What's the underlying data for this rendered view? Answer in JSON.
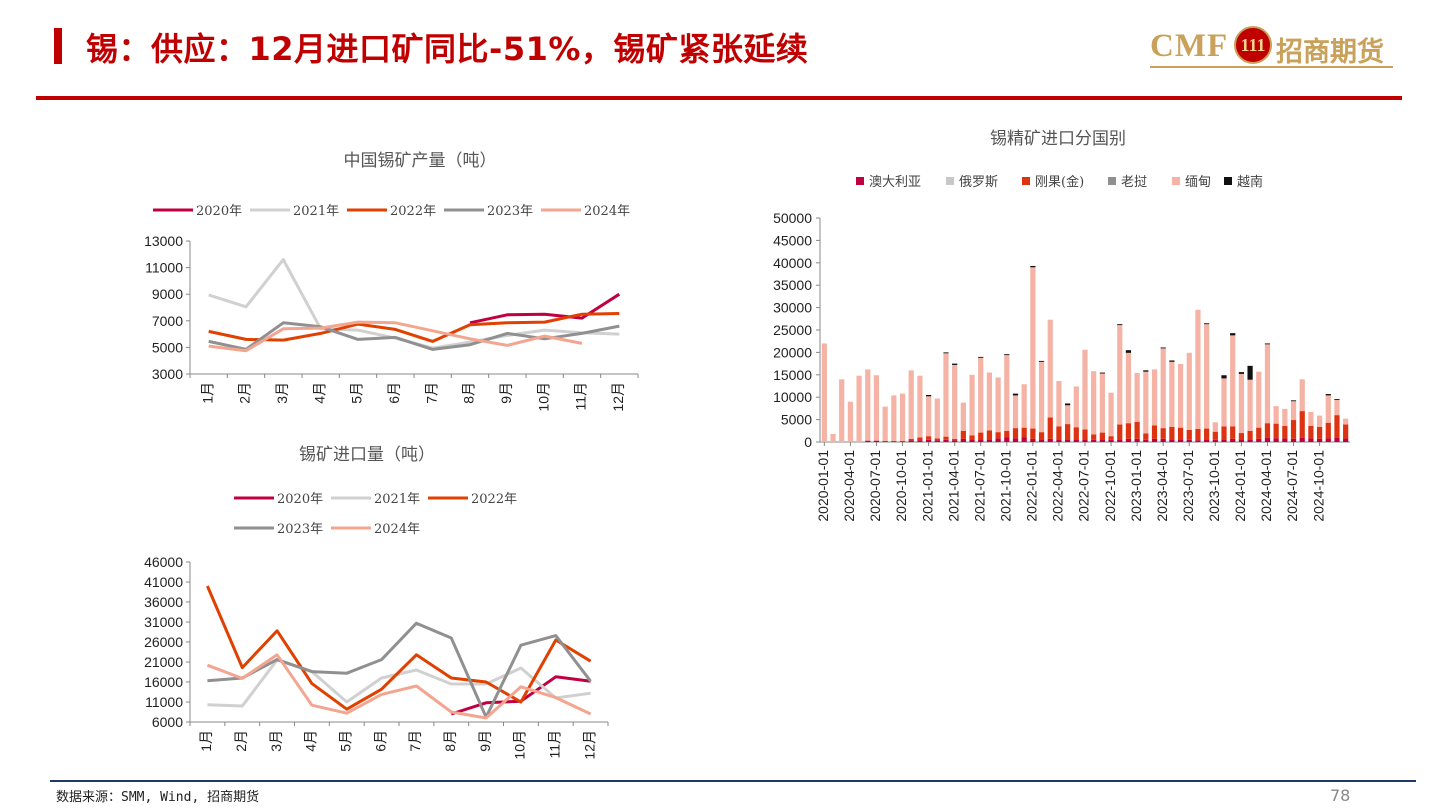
{
  "header": {
    "title": "锡：供应：12月进口矿同比-51%，锡矿紧张延续"
  },
  "logo": {
    "brand": "CMF",
    "badge": "111",
    "name": "招商期货"
  },
  "footer": {
    "source": "数据来源：SMM, Wind, 招商期货",
    "page": "78"
  },
  "colors": {
    "s2020": "#c00040",
    "s2021": "#d0d0d0",
    "s2022": "#e04000",
    "s2023": "#909090",
    "s2024": "#f4a590",
    "burma": "#f4b3a4",
    "congo": "#dd3311",
    "australia": "#c00040",
    "russia": "#c8c8c8",
    "laos": "#909090",
    "vietnam": "#111111"
  },
  "chart_data": [
    {
      "type": "line",
      "title": "中国锡矿产量（吨）",
      "categories": [
        "1月",
        "2月",
        "3月",
        "4月",
        "5月",
        "6月",
        "7月",
        "8月",
        "9月",
        "10月",
        "11月",
        "12月"
      ],
      "ylim": [
        3000,
        13000
      ],
      "yticks": [
        3000,
        5000,
        7000,
        9000,
        11000,
        13000
      ],
      "legend_position": "top",
      "series": [
        {
          "name": "2020年",
          "color": "#c00040",
          "values": [
            null,
            null,
            null,
            null,
            null,
            null,
            null,
            6850,
            7450,
            7500,
            7200,
            9000
          ]
        },
        {
          "name": "2021年",
          "color": "#d0d0d0",
          "values": [
            8950,
            8050,
            11600,
            6400,
            6300,
            5700,
            4950,
            5400,
            5900,
            6300,
            6100,
            6000
          ]
        },
        {
          "name": "2022年",
          "color": "#e04000",
          "values": [
            6200,
            5600,
            5550,
            6050,
            6750,
            6350,
            5450,
            6700,
            6850,
            6900,
            7500,
            7550
          ]
        },
        {
          "name": "2023年",
          "color": "#909090",
          "values": [
            5450,
            4850,
            6850,
            6550,
            5600,
            5750,
            4850,
            5200,
            6050,
            5650,
            6050,
            6600
          ]
        },
        {
          "name": "2024年",
          "color": "#f4a590",
          "values": [
            5100,
            4750,
            6400,
            6450,
            6900,
            6850,
            6250,
            5650,
            5150,
            5850,
            5300,
            null
          ]
        }
      ]
    },
    {
      "type": "line",
      "title": "锡矿进口量（吨）",
      "categories": [
        "1月",
        "2月",
        "3月",
        "4月",
        "5月",
        "6月",
        "7月",
        "8月",
        "9月",
        "10月",
        "11月",
        "12月"
      ],
      "ylim": [
        6000,
        46000
      ],
      "yticks": [
        6000,
        11000,
        16000,
        21000,
        26000,
        31000,
        36000,
        41000,
        46000
      ],
      "legend_position": "top",
      "series": [
        {
          "name": "2020年",
          "color": "#c00040",
          "values": [
            null,
            null,
            null,
            null,
            null,
            null,
            null,
            8000,
            10800,
            11200,
            17300,
            16200
          ]
        },
        {
          "name": "2021年",
          "color": "#d0d0d0",
          "values": [
            10300,
            10000,
            21500,
            18600,
            11000,
            17000,
            19000,
            15500,
            15500,
            19500,
            12000,
            13200
          ]
        },
        {
          "name": "2022年",
          "color": "#e04000",
          "values": [
            40000,
            19600,
            28800,
            15600,
            9200,
            14200,
            22800,
            17000,
            16000,
            11000,
            26500,
            21200
          ]
        },
        {
          "name": "2023年",
          "color": "#909090",
          "values": [
            16300,
            17000,
            21600,
            18600,
            18200,
            21600,
            30700,
            27000,
            7200,
            25200,
            27600,
            16200
          ]
        },
        {
          "name": "2024年",
          "color": "#f4a590",
          "values": [
            20200,
            16900,
            22800,
            10200,
            8200,
            12900,
            15000,
            8500,
            7000,
            14800,
            12100,
            8000
          ]
        }
      ]
    },
    {
      "type": "bar",
      "stacked": true,
      "title": "锡精矿进口分国别",
      "ylim": [
        0,
        50000
      ],
      "yticks": [
        0,
        5000,
        10000,
        15000,
        20000,
        25000,
        30000,
        35000,
        40000,
        45000,
        50000
      ],
      "xtick_labels": [
        "2020-01-01",
        "2020-04-01",
        "2020-07-01",
        "2020-10-01",
        "2021-01-01",
        "2021-04-01",
        "2021-07-01",
        "2021-10-01",
        "2022-01-01",
        "2022-04-01",
        "2022-07-01",
        "2022-10-01",
        "2023-01-01",
        "2023-04-01",
        "2023-07-01",
        "2023-10-01",
        "2024-01-01",
        "2024-04-01",
        "2024-07-01",
        "2024-10-01"
      ],
      "legend_position": "top",
      "series": [
        {
          "name": "澳大利亚",
          "color": "#c00040"
        },
        {
          "name": "俄罗斯",
          "color": "#c8c8c8"
        },
        {
          "name": "刚果(金)",
          "color": "#dd3311"
        },
        {
          "name": "老挝",
          "color": "#909090"
        },
        {
          "name": "缅甸",
          "color": "#f4b3a4"
        },
        {
          "name": "越南",
          "color": "#111111"
        }
      ],
      "months": [
        {
          "x": "2020-01",
          "vals": [
            0,
            0,
            0,
            0,
            22000,
            0
          ]
        },
        {
          "x": "2020-02",
          "vals": [
            0,
            0,
            0,
            0,
            1800,
            0
          ]
        },
        {
          "x": "2020-03",
          "vals": [
            0,
            0,
            0,
            0,
            14000,
            0
          ]
        },
        {
          "x": "2020-04",
          "vals": [
            0,
            0,
            0,
            0,
            9000,
            0
          ]
        },
        {
          "x": "2020-05",
          "vals": [
            0,
            0,
            0,
            0,
            14800,
            0
          ]
        },
        {
          "x": "2020-06",
          "vals": [
            300,
            0,
            0,
            0,
            15900,
            0
          ]
        },
        {
          "x": "2020-07",
          "vals": [
            300,
            0,
            0,
            0,
            14600,
            0
          ]
        },
        {
          "x": "2020-08",
          "vals": [
            200,
            0,
            0,
            0,
            7700,
            0
          ]
        },
        {
          "x": "2020-09",
          "vals": [
            200,
            0,
            0,
            0,
            10200,
            0
          ]
        },
        {
          "x": "2020-10",
          "vals": [
            200,
            0,
            0,
            0,
            10600,
            0
          ]
        },
        {
          "x": "2020-11",
          "vals": [
            400,
            0,
            300,
            0,
            15300,
            0
          ]
        },
        {
          "x": "2020-12",
          "vals": [
            400,
            0,
            600,
            0,
            13800,
            0
          ]
        },
        {
          "x": "2021-01",
          "vals": [
            500,
            0,
            800,
            0,
            8900,
            300
          ]
        },
        {
          "x": "2021-02",
          "vals": [
            400,
            0,
            400,
            0,
            8900,
            0
          ]
        },
        {
          "x": "2021-03",
          "vals": [
            500,
            0,
            700,
            0,
            18600,
            200
          ]
        },
        {
          "x": "2021-04",
          "vals": [
            400,
            0,
            300,
            0,
            16500,
            300
          ]
        },
        {
          "x": "2021-05",
          "vals": [
            700,
            0,
            1800,
            0,
            6300,
            0
          ]
        },
        {
          "x": "2021-06",
          "vals": [
            600,
            0,
            900,
            0,
            13500,
            0
          ]
        },
        {
          "x": "2021-07",
          "vals": [
            600,
            0,
            1500,
            0,
            16700,
            200
          ]
        },
        {
          "x": "2021-08",
          "vals": [
            600,
            0,
            2000,
            0,
            12900,
            0
          ]
        },
        {
          "x": "2021-09",
          "vals": [
            800,
            0,
            1400,
            0,
            12200,
            0
          ]
        },
        {
          "x": "2021-10",
          "vals": [
            1000,
            0,
            1500,
            0,
            16900,
            200
          ]
        },
        {
          "x": "2021-11",
          "vals": [
            800,
            0,
            2300,
            0,
            7300,
            400
          ]
        },
        {
          "x": "2021-12",
          "vals": [
            1000,
            0,
            2200,
            0,
            9700,
            0
          ]
        },
        {
          "x": "2022-01",
          "vals": [
            700,
            0,
            2300,
            0,
            36000,
            300
          ]
        },
        {
          "x": "2022-02",
          "vals": [
            600,
            0,
            1600,
            0,
            15700,
            200
          ]
        },
        {
          "x": "2022-03",
          "vals": [
            700,
            0,
            4800,
            0,
            21800,
            0
          ]
        },
        {
          "x": "2022-04",
          "vals": [
            600,
            0,
            2900,
            0,
            10100,
            0
          ]
        },
        {
          "x": "2022-05",
          "vals": [
            600,
            0,
            3400,
            0,
            4200,
            400
          ]
        },
        {
          "x": "2022-06",
          "vals": [
            600,
            0,
            2700,
            0,
            9100,
            0
          ]
        },
        {
          "x": "2022-07",
          "vals": [
            600,
            0,
            2200,
            0,
            17800,
            0
          ]
        },
        {
          "x": "2022-08",
          "vals": [
            500,
            0,
            1200,
            0,
            14100,
            0
          ]
        },
        {
          "x": "2022-09",
          "vals": [
            600,
            0,
            1500,
            0,
            13200,
            200
          ]
        },
        {
          "x": "2022-10",
          "vals": [
            500,
            0,
            800,
            0,
            9700,
            0
          ]
        },
        {
          "x": "2022-11",
          "vals": [
            600,
            0,
            3300,
            0,
            22200,
            200
          ]
        },
        {
          "x": "2022-12",
          "vals": [
            700,
            0,
            3500,
            0,
            15700,
            600
          ]
        },
        {
          "x": "2023-01",
          "vals": [
            700,
            0,
            3800,
            0,
            10900,
            0
          ]
        },
        {
          "x": "2023-02",
          "vals": [
            500,
            0,
            1400,
            0,
            13800,
            300
          ]
        },
        {
          "x": "2023-03",
          "vals": [
            700,
            0,
            3000,
            0,
            12500,
            0
          ]
        },
        {
          "x": "2023-04",
          "vals": [
            700,
            0,
            2400,
            0,
            17800,
            200
          ]
        },
        {
          "x": "2023-05",
          "vals": [
            600,
            0,
            2800,
            0,
            14500,
            300
          ]
        },
        {
          "x": "2023-06",
          "vals": [
            600,
            0,
            2600,
            0,
            14200,
            0
          ]
        },
        {
          "x": "2023-07",
          "vals": [
            500,
            0,
            2200,
            0,
            17200,
            0
          ]
        },
        {
          "x": "2023-08",
          "vals": [
            400,
            0,
            2500,
            0,
            26600,
            0
          ]
        },
        {
          "x": "2023-09",
          "vals": [
            600,
            0,
            2400,
            0,
            23300,
            200
          ]
        },
        {
          "x": "2023-10",
          "vals": [
            500,
            0,
            1800,
            0,
            2100,
            0
          ]
        },
        {
          "x": "2023-11",
          "vals": [
            600,
            0,
            2900,
            0,
            10700,
            700
          ]
        },
        {
          "x": "2023-12",
          "vals": [
            700,
            0,
            2800,
            0,
            20300,
            500
          ]
        },
        {
          "x": "2024-01",
          "vals": [
            600,
            0,
            1400,
            0,
            13200,
            400
          ]
        },
        {
          "x": "2024-02",
          "vals": [
            600,
            0,
            1900,
            0,
            11400,
            3100
          ]
        },
        {
          "x": "2024-03",
          "vals": [
            700,
            0,
            2500,
            0,
            12500,
            0
          ]
        },
        {
          "x": "2024-04",
          "vals": [
            900,
            0,
            3300,
            0,
            17600,
            200
          ]
        },
        {
          "x": "2024-05",
          "vals": [
            800,
            0,
            3300,
            0,
            3900,
            0
          ]
        },
        {
          "x": "2024-06",
          "vals": [
            800,
            0,
            2800,
            0,
            3800,
            0
          ]
        },
        {
          "x": "2024-07",
          "vals": [
            700,
            0,
            4200,
            0,
            4200,
            200
          ]
        },
        {
          "x": "2024-08",
          "vals": [
            900,
            0,
            6000,
            0,
            7100,
            0
          ]
        },
        {
          "x": "2024-09",
          "vals": [
            800,
            0,
            2800,
            0,
            3100,
            0
          ]
        },
        {
          "x": "2024-10",
          "vals": [
            700,
            0,
            2700,
            0,
            2500,
            0
          ]
        },
        {
          "x": "2024-11",
          "vals": [
            800,
            0,
            3500,
            0,
            6100,
            300
          ]
        },
        {
          "x": "2024-12",
          "vals": [
            900,
            0,
            5100,
            0,
            3400,
            200
          ]
        },
        {
          "x": "2025-01",
          "vals": [
            800,
            0,
            3100,
            0,
            1300,
            0
          ]
        }
      ]
    }
  ]
}
